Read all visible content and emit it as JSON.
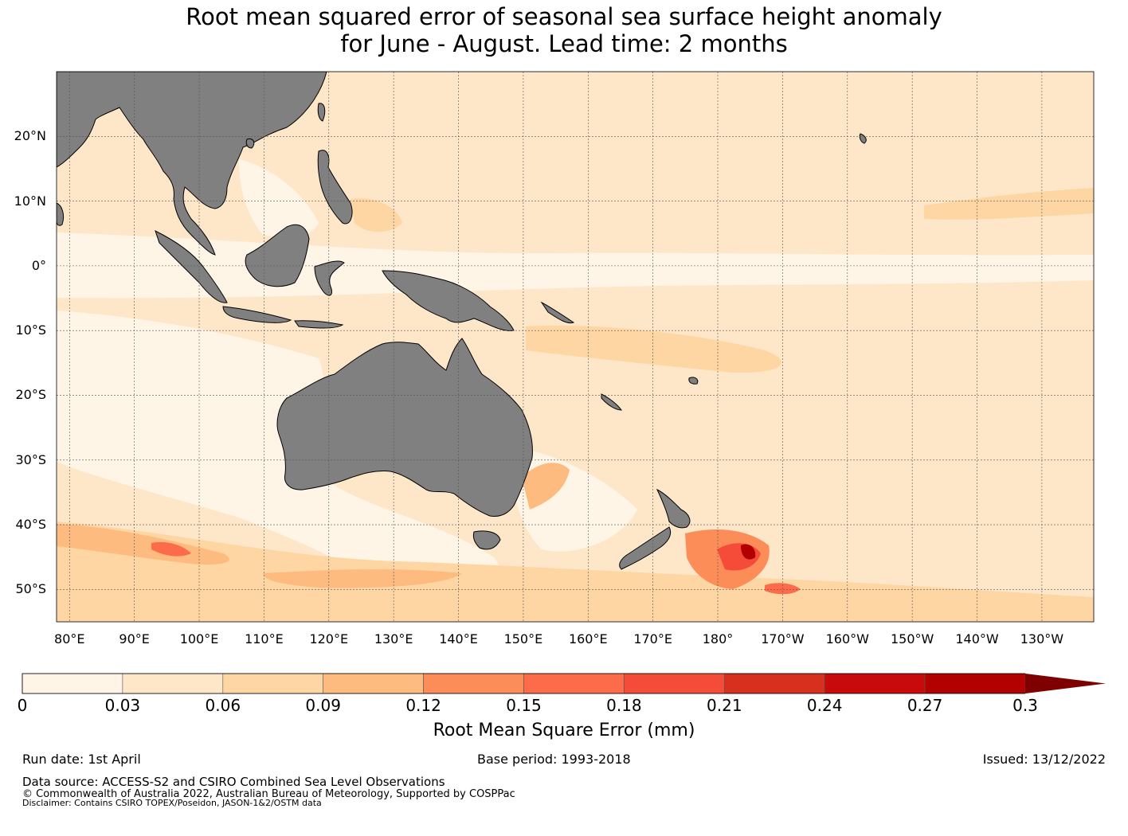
{
  "title": {
    "line1": "Root mean squared error of seasonal sea surface height anomaly",
    "line2": "for June - August. Lead time: 2 months"
  },
  "map": {
    "projection": "equirectangular",
    "extent": {
      "lon": [
        78,
        238
      ],
      "lat": [
        -55,
        30
      ]
    },
    "land_color": "#808080",
    "grid": true,
    "lat_labels": [
      "20°N",
      "10°N",
      "0°",
      "10°S",
      "20°S",
      "30°S",
      "40°S",
      "50°S"
    ],
    "lon_labels": [
      "80°E",
      "90°E",
      "100°E",
      "110°E",
      "120°E",
      "130°E",
      "140°E",
      "150°E",
      "160°E",
      "170°E",
      "180°",
      "170°W",
      "160°W",
      "150°W",
      "140°W",
      "130°W"
    ]
  },
  "colorbar": {
    "label": "Root Mean Square Error (mm)",
    "ticks": [
      "0",
      "0.03",
      "0.06",
      "0.09",
      "0.12",
      "0.15",
      "0.18",
      "0.21",
      "0.24",
      "0.27",
      "0.3"
    ],
    "colors": [
      "#fff5e6",
      "#fee7c9",
      "#fdd6a3",
      "#fdbb80",
      "#fc8d59",
      "#fc6b4a",
      "#f54c3a",
      "#d7301f",
      "#c80a0a",
      "#b30000",
      "#7f0000"
    ],
    "extend": "max"
  },
  "footer": {
    "run_date": "Run date: 1st April",
    "base_period": "Base period: 1993-2018",
    "issued": "Issued: 13/12/2022",
    "data_source": "Data source: ACCESS-S2 and CSIRO Combined Sea Level Observations",
    "copyright": "© Commonwealth of Australia 2022, Australian Bureau of Meteorology, Supported by COSPPac",
    "disclaimer": "Disclaimer: Contains CSIRO TOPEX/Poseidon, JASON-1&2/OSTM data"
  }
}
